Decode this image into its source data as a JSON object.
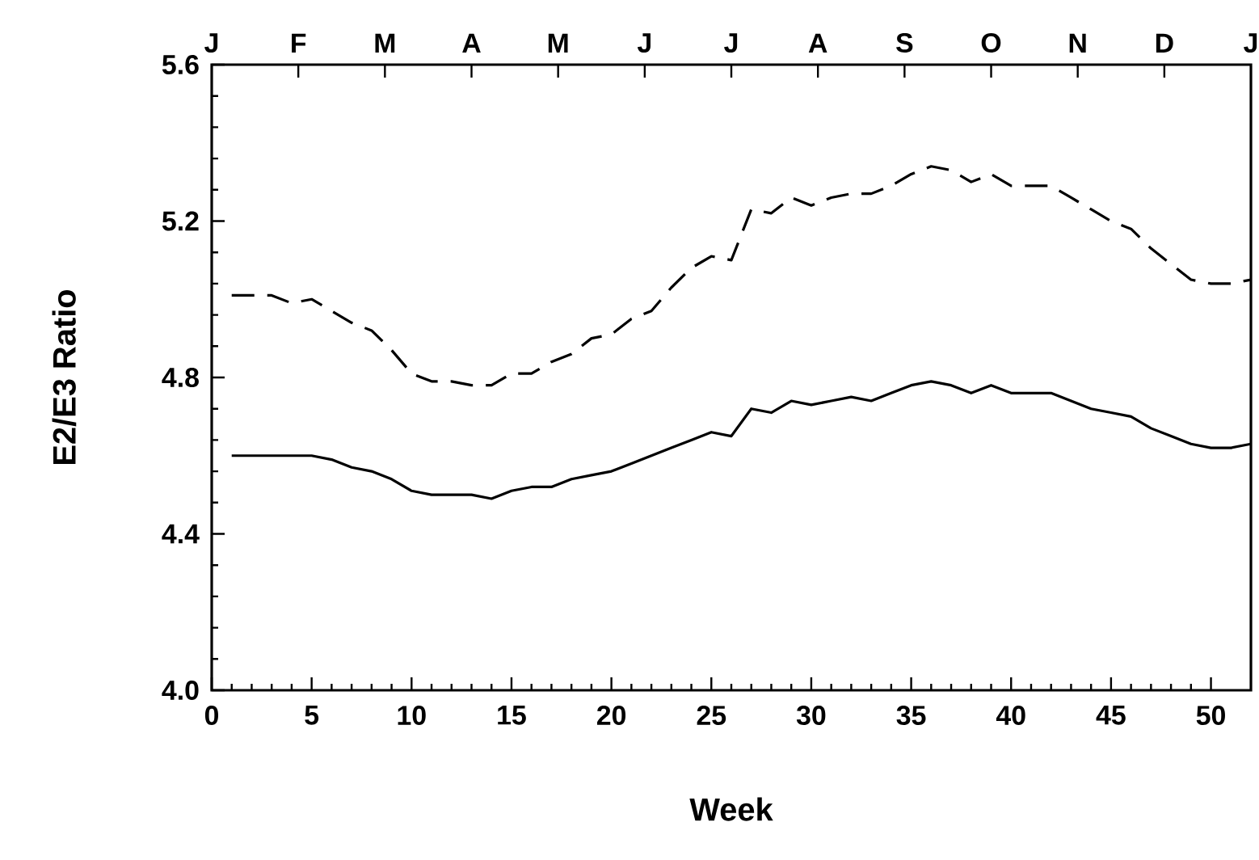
{
  "chart_data": {
    "type": "line",
    "xlabel": "Week",
    "ylabel": "E2/E3 Ratio",
    "x": [
      1,
      2,
      3,
      4,
      5,
      6,
      7,
      8,
      9,
      10,
      11,
      12,
      13,
      14,
      15,
      16,
      17,
      18,
      19,
      20,
      21,
      22,
      23,
      24,
      25,
      26,
      27,
      28,
      29,
      30,
      31,
      32,
      33,
      34,
      35,
      36,
      37,
      38,
      39,
      40,
      41,
      42,
      43,
      44,
      45,
      46,
      47,
      48,
      49,
      50,
      51,
      52
    ],
    "xlim": [
      0,
      52
    ],
    "xticks": [
      0,
      5,
      10,
      15,
      20,
      25,
      30,
      35,
      40,
      45,
      50
    ],
    "ylim": [
      4.0,
      5.6
    ],
    "yticks": [
      {
        "value": 4.0,
        "label": "4.0"
      },
      4.4,
      4.8,
      5.2,
      5.6
    ],
    "annotations": [
      "J",
      "F",
      "M",
      "A",
      "M",
      "J",
      "J",
      "A",
      "S",
      "O",
      "N",
      "D",
      "J"
    ],
    "series": [
      {
        "color": "#000000",
        "line_style": "solid",
        "values": [
          4.6,
          4.6,
          4.6,
          4.6,
          4.6,
          4.59,
          4.57,
          4.56,
          4.54,
          4.51,
          4.5,
          4.5,
          4.5,
          4.49,
          4.51,
          4.52,
          4.52,
          4.54,
          4.55,
          4.56,
          4.58,
          4.6,
          4.62,
          4.64,
          4.66,
          4.65,
          4.72,
          4.71,
          4.74,
          4.73,
          4.74,
          4.75,
          4.74,
          4.76,
          4.78,
          4.79,
          4.78,
          4.76,
          4.78,
          4.76,
          4.76,
          4.76,
          4.74,
          4.72,
          4.71,
          4.7,
          4.67,
          4.65,
          4.63,
          4.62,
          4.62,
          4.63
        ]
      },
      {
        "color": "#000000",
        "line_style": "dashed",
        "values": [
          5.01,
          5.01,
          5.01,
          4.99,
          5.0,
          4.97,
          4.94,
          4.92,
          4.87,
          4.81,
          4.79,
          4.79,
          4.78,
          4.78,
          4.81,
          4.81,
          4.84,
          4.86,
          4.9,
          4.91,
          4.95,
          4.97,
          5.03,
          5.08,
          5.11,
          5.1,
          5.23,
          5.22,
          5.26,
          5.24,
          5.26,
          5.27,
          5.27,
          5.29,
          5.32,
          5.34,
          5.33,
          5.3,
          5.32,
          5.29,
          5.29,
          5.29,
          5.26,
          5.23,
          5.2,
          5.18,
          5.13,
          5.09,
          5.05,
          5.04,
          5.04,
          5.05
        ]
      }
    ]
  }
}
